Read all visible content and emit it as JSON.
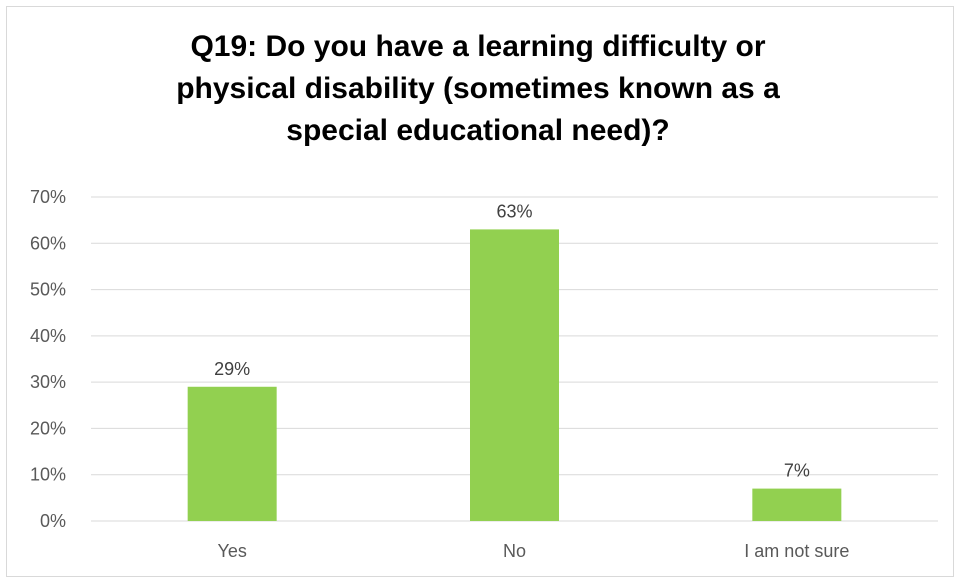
{
  "chart_data": {
    "type": "bar",
    "title": "Q19: Do you have a learning difficulty or\nphysical disability (sometimes known as a\nspecial educational need)?",
    "categories": [
      "Yes",
      "No",
      "I am not sure"
    ],
    "values": [
      29,
      63,
      7
    ],
    "data_labels": [
      "29%",
      "63%",
      "7%"
    ],
    "ylim": [
      0,
      70
    ],
    "yticks": [
      0,
      10,
      20,
      30,
      40,
      50,
      60,
      70
    ],
    "ytick_labels": [
      "0%",
      "10%",
      "20%",
      "30%",
      "40%",
      "50%",
      "60%",
      "70%"
    ],
    "grid": true,
    "bar_color": "#92d050",
    "grid_color": "#d9d9d9"
  }
}
